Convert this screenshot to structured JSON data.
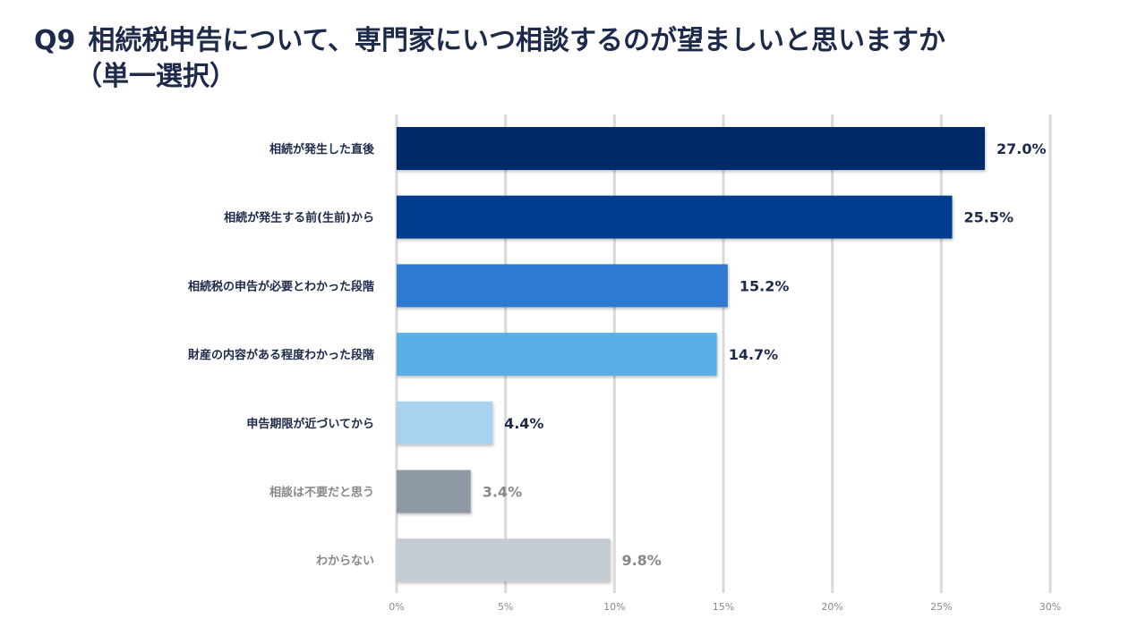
{
  "title": {
    "number": "Q9",
    "line1": "相続税申告について、専門家にいつ相談するのが望ましいと思いますか",
    "line2": "（単一選択）"
  },
  "colors": {
    "title_text": "#1e2a4a",
    "gridline": "#d9d9d9",
    "axis_tick_text": "#888888"
  },
  "chart_data": {
    "type": "bar",
    "orientation": "horizontal",
    "categories": [
      "相続が発生した直後",
      "相続が発生する前(生前)から",
      "相続税の申告が必要とわかった段階",
      "財産の内容がある程度わかった段階",
      "申告期限が近づいてから",
      "相談は不要だと思う",
      "わからない"
    ],
    "values": [
      27.0,
      25.5,
      15.2,
      14.7,
      4.4,
      3.4,
      9.8
    ],
    "data_labels": [
      "27.0%",
      "25.5%",
      "15.2%",
      "14.7%",
      "4.4%",
      "3.4%",
      "9.8%"
    ],
    "bar_colors": [
      "#002a6b",
      "#003d8f",
      "#2e79d1",
      "#5aafe6",
      "#a9d1f0",
      "#8f99a4",
      "#c6ccd3"
    ],
    "label_colors": [
      "#1e2a4a",
      "#1e2a4a",
      "#1e2a4a",
      "#1e2a4a",
      "#1e2a4a",
      "#888888",
      "#888888"
    ],
    "xlim": [
      0,
      30
    ],
    "ticks": [
      0,
      5,
      10,
      15,
      20,
      25,
      30
    ],
    "tick_labels": [
      "0%",
      "5%",
      "10%",
      "15%",
      "20%",
      "25%",
      "30%"
    ],
    "xlabel": "",
    "ylabel": "",
    "grid": true,
    "legend": "none"
  }
}
